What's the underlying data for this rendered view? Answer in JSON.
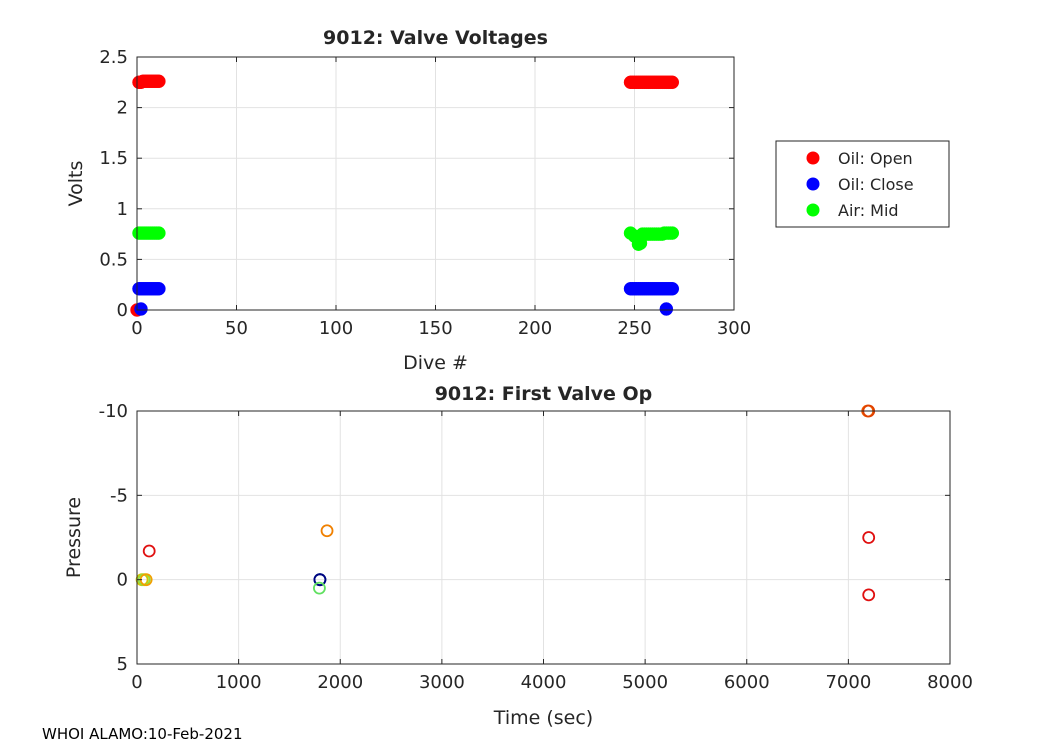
{
  "footer": "WHOI ALAMO:10-Feb-2021",
  "chart_data": [
    {
      "type": "scatter",
      "title": "9012: Valve Voltages",
      "xlabel": "Dive #",
      "ylabel": "Volts",
      "xlim": [
        0,
        300
      ],
      "ylim": [
        0,
        2.5
      ],
      "xticks": [
        0,
        50,
        100,
        150,
        200,
        250,
        300
      ],
      "xtick_labels": [
        "0",
        "50",
        "100",
        "150",
        "200",
        "250",
        "300"
      ],
      "yticks": [
        0,
        0.5,
        1,
        1.5,
        2,
        2.5
      ],
      "ytick_labels": [
        "0",
        "0.5",
        "1",
        "1.5",
        "2",
        "2.5"
      ],
      "grid": true,
      "legend_position": "outside-right",
      "series": [
        {
          "name": "Oil: Open",
          "color": "#ff0000",
          "x": [
            0,
            1,
            2,
            3,
            4,
            5,
            6,
            7,
            8,
            9,
            10,
            11,
            248,
            249,
            250,
            251,
            252,
            253,
            254,
            255,
            256,
            257,
            258,
            259,
            260,
            261,
            262,
            263,
            264,
            265,
            266,
            267,
            268,
            269
          ],
          "y": [
            0,
            2.25,
            2.25,
            2.26,
            2.26,
            2.26,
            2.26,
            2.26,
            2.26,
            2.26,
            2.26,
            2.26,
            2.25,
            2.25,
            2.25,
            2.25,
            2.25,
            2.25,
            2.25,
            2.25,
            2.25,
            2.25,
            2.25,
            2.25,
            2.25,
            2.25,
            2.25,
            2.25,
            2.25,
            2.25,
            2.25,
            2.25,
            2.25,
            2.25
          ]
        },
        {
          "name": "Oil: Close",
          "color": "#0000ff",
          "x": [
            1,
            2,
            3,
            4,
            5,
            6,
            7,
            8,
            9,
            10,
            11,
            248,
            249,
            250,
            251,
            252,
            253,
            254,
            255,
            256,
            257,
            258,
            259,
            260,
            261,
            262,
            263,
            264,
            265,
            266,
            267,
            268,
            269,
            2,
            266
          ],
          "y": [
            0.21,
            0.21,
            0.21,
            0.21,
            0.21,
            0.21,
            0.21,
            0.21,
            0.21,
            0.21,
            0.21,
            0.21,
            0.21,
            0.21,
            0.21,
            0.21,
            0.21,
            0.21,
            0.21,
            0.21,
            0.21,
            0.21,
            0.21,
            0.21,
            0.21,
            0.21,
            0.21,
            0.21,
            0.21,
            0.21,
            0.21,
            0.21,
            0.21,
            0.01,
            0.01
          ]
        },
        {
          "name": "Air: Mid",
          "color": "#00ff00",
          "x": [
            1,
            2,
            3,
            4,
            5,
            6,
            7,
            8,
            9,
            10,
            11,
            248,
            250,
            251,
            252,
            253,
            254,
            255,
            256,
            257,
            258,
            259,
            260,
            261,
            262,
            263,
            264,
            265,
            266,
            267,
            268,
            269
          ],
          "y": [
            0.76,
            0.76,
            0.76,
            0.76,
            0.76,
            0.76,
            0.76,
            0.76,
            0.76,
            0.76,
            0.76,
            0.76,
            0.73,
            0.72,
            0.65,
            0.66,
            0.75,
            0.75,
            0.75,
            0.75,
            0.75,
            0.75,
            0.75,
            0.75,
            0.75,
            0.75,
            0.75,
            0.76,
            0.76,
            0.76,
            0.76,
            0.76
          ]
        }
      ]
    },
    {
      "type": "scatter",
      "title": "9012: First Valve Op",
      "xlabel": "Time (sec)",
      "ylabel": "Pressure",
      "xlim": [
        0,
        8000
      ],
      "ylim": [
        -10,
        5
      ],
      "y_reversed": true,
      "xticks": [
        0,
        1000,
        2000,
        3000,
        4000,
        5000,
        6000,
        7000,
        8000
      ],
      "xtick_labels": [
        "0",
        "1000",
        "2000",
        "3000",
        "4000",
        "5000",
        "6000",
        "7000",
        "8000"
      ],
      "yticks": [
        -10,
        -5,
        0,
        5
      ],
      "ytick_labels": [
        "-10",
        "-5",
        "0",
        "5"
      ],
      "grid": true,
      "marker": "open-circle",
      "points": [
        {
          "x": 120,
          "y": -1.7,
          "color": "#e01010"
        },
        {
          "x": 50,
          "y": 0.0,
          "color": "#d4c400"
        },
        {
          "x": 70,
          "y": 0.0,
          "color": "#90e040"
        },
        {
          "x": 90,
          "y": 0.0,
          "color": "#f0a000"
        },
        {
          "x": 1870,
          "y": -2.9,
          "color": "#f08000"
        },
        {
          "x": 1800,
          "y": 0.0,
          "color": "#00c000"
        },
        {
          "x": 1800,
          "y": 0.0,
          "color": "#2050ff"
        },
        {
          "x": 1800,
          "y": 0.0,
          "color": "#000080"
        },
        {
          "x": 1795,
          "y": 0.5,
          "color": "#60e060"
        },
        {
          "x": 7190,
          "y": -10.0,
          "color": "#f06000"
        },
        {
          "x": 7200,
          "y": -10.0,
          "color": "#e04000"
        },
        {
          "x": 7200,
          "y": -2.5,
          "color": "#e01010"
        },
        {
          "x": 7200,
          "y": 0.9,
          "color": "#e01010"
        }
      ]
    }
  ]
}
